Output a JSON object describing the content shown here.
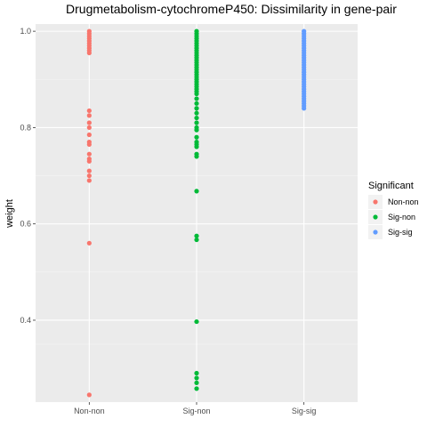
{
  "chart_data": {
    "type": "scatter",
    "title": "Drugmetabolism-cytochromeP450: Dissimilarity in gene-pair",
    "xlabel": "",
    "ylabel": "weight",
    "categories": [
      "Non-non",
      "Sig-non",
      "Sig-sig"
    ],
    "yticks": [
      "0.4",
      "0.6",
      "0.8",
      "1.0"
    ],
    "ylim": [
      0.23,
      1.015
    ],
    "grid": true,
    "legend": {
      "title": "Significant",
      "placement": "right",
      "entries": [
        "Non-non",
        "Sig-non",
        "Sig-sig"
      ]
    },
    "series": [
      {
        "name": "Non-non",
        "color": "#F8766D",
        "category": "Non-non",
        "values": [
          1.0,
          0.995,
          0.99,
          0.985,
          0.98,
          0.975,
          0.97,
          0.965,
          0.96,
          0.955,
          0.835,
          0.825,
          0.81,
          0.8,
          0.785,
          0.77,
          0.765,
          0.745,
          0.735,
          0.73,
          0.71,
          0.7,
          0.69,
          0.56,
          0.245
        ]
      },
      {
        "name": "Sig-non",
        "color": "#00BA38",
        "category": "Sig-non",
        "values": [
          1.0,
          0.995,
          0.99,
          0.985,
          0.98,
          0.975,
          0.97,
          0.965,
          0.96,
          0.955,
          0.95,
          0.945,
          0.94,
          0.935,
          0.93,
          0.925,
          0.92,
          0.915,
          0.91,
          0.905,
          0.9,
          0.895,
          0.89,
          0.885,
          0.88,
          0.875,
          0.87,
          0.86,
          0.85,
          0.84,
          0.83,
          0.82,
          0.81,
          0.8,
          0.795,
          0.78,
          0.77,
          0.765,
          0.76,
          0.745,
          0.74,
          0.668,
          0.575,
          0.567,
          0.397,
          0.29,
          0.28,
          0.27,
          0.258
        ]
      },
      {
        "name": "Sig-sig",
        "color": "#619CFF",
        "category": "Sig-sig",
        "values": [
          1.0,
          0.995,
          0.99,
          0.985,
          0.98,
          0.975,
          0.97,
          0.965,
          0.96,
          0.955,
          0.95,
          0.945,
          0.94,
          0.935,
          0.93,
          0.925,
          0.92,
          0.915,
          0.91,
          0.905,
          0.9,
          0.895,
          0.89,
          0.885,
          0.88,
          0.875,
          0.87,
          0.865,
          0.86,
          0.855,
          0.85,
          0.845,
          0.84
        ]
      }
    ]
  }
}
